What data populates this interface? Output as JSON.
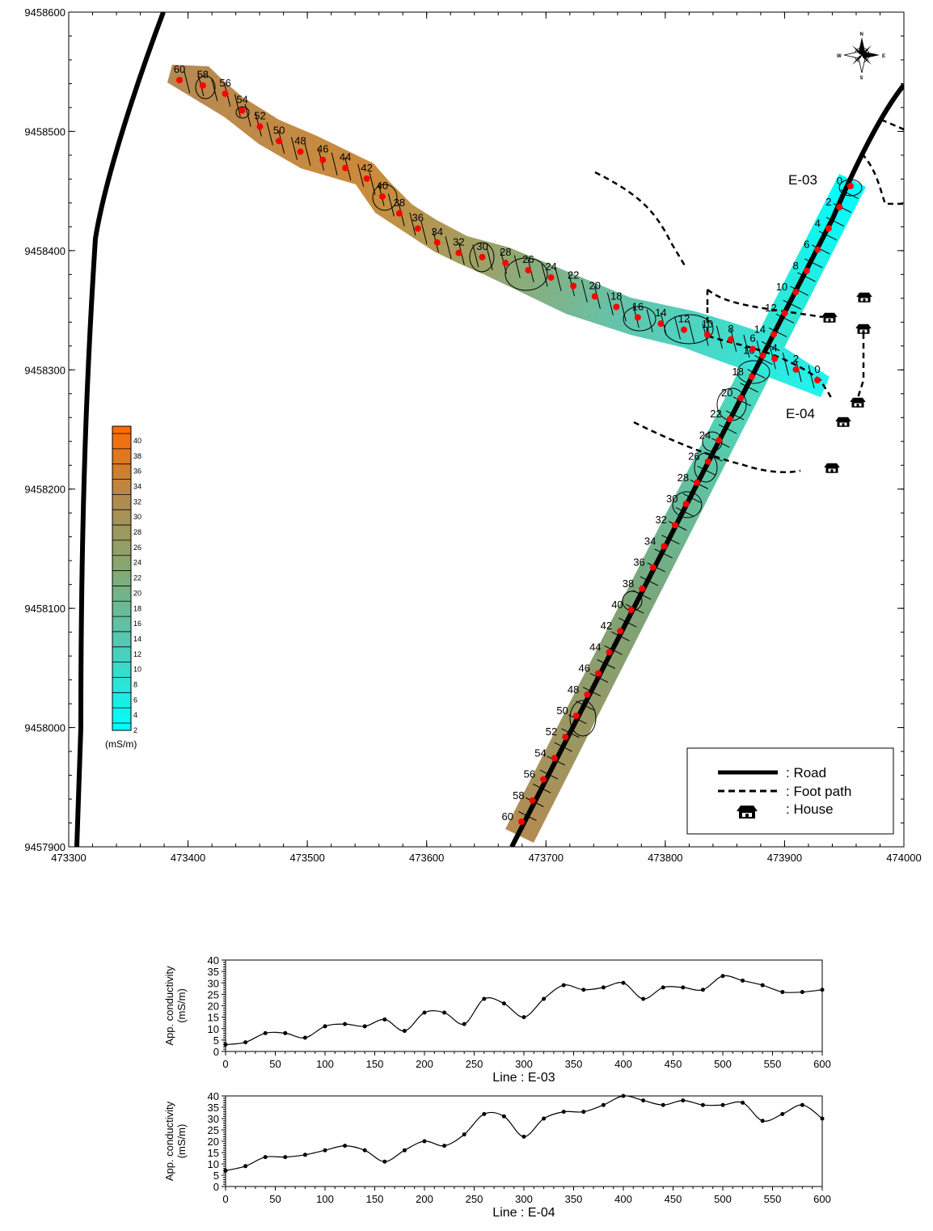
{
  "map": {
    "x_ticks": [
      "473300",
      "473400",
      "473500",
      "473600",
      "473700",
      "473800",
      "473900",
      "474000"
    ],
    "y_ticks": [
      "9457900",
      "9458000",
      "9458100",
      "9458200",
      "9458300",
      "9458400",
      "9458500",
      "9458600"
    ],
    "xlim": [
      473300,
      474000
    ],
    "ylim": [
      9457900,
      9458600
    ],
    "line_e03_label": "E-03",
    "line_e04_label": "E-04",
    "compass": {
      "n": "N",
      "s": "S",
      "e": "E",
      "w": "W"
    },
    "colorbar": {
      "ticks": [
        "40",
        "38",
        "36",
        "34",
        "32",
        "30",
        "28",
        "26",
        "24",
        "22",
        "20",
        "18",
        "16",
        "14",
        "12",
        "10",
        "8",
        "6",
        "4",
        "2"
      ],
      "unit": "(mS/m)",
      "low_color": "#00ffff",
      "high_color": "#ff6a00"
    },
    "legend": {
      "road": ": Road",
      "foot_path": ": Foot path",
      "house": ": House"
    },
    "station_labels": [
      "0",
      "2",
      "4",
      "6",
      "8",
      "10",
      "12",
      "14",
      "16",
      "18",
      "20",
      "22",
      "24",
      "26",
      "28",
      "30",
      "32",
      "34",
      "36",
      "38",
      "40",
      "42",
      "44",
      "46",
      "48",
      "50",
      "52",
      "54",
      "56",
      "58",
      "60"
    ],
    "station_color": "#ff0000"
  },
  "chart_data": [
    {
      "type": "line",
      "title": "Line : E-03",
      "ylabel_line1": "App. conductivity",
      "ylabel_line2": "(mS/m)",
      "x": [
        0,
        20,
        40,
        60,
        80,
        100,
        120,
        140,
        160,
        180,
        200,
        220,
        240,
        260,
        280,
        300,
        320,
        340,
        360,
        380,
        400,
        420,
        440,
        460,
        480,
        500,
        520,
        540,
        560,
        580,
        600
      ],
      "values": [
        3,
        4,
        8,
        8,
        6,
        11,
        12,
        11,
        14,
        9,
        17,
        17,
        12,
        23,
        21,
        15,
        23,
        29,
        27,
        28,
        30,
        23,
        28,
        28,
        27,
        33,
        31,
        29,
        26,
        26,
        27
      ],
      "xlim": [
        0,
        600
      ],
      "ylim": [
        0,
        40
      ],
      "x_ticks": [
        "0",
        "50",
        "100",
        "150",
        "200",
        "250",
        "300",
        "350",
        "400",
        "450",
        "500",
        "550",
        "600"
      ],
      "y_ticks": [
        "0",
        "5",
        "10",
        "15",
        "20",
        "25",
        "30",
        "35",
        "40"
      ]
    },
    {
      "type": "line",
      "title": "Line : E-04",
      "ylabel_line1": "App. conductivity",
      "ylabel_line2": "(mS/m)",
      "x": [
        0,
        20,
        40,
        60,
        80,
        100,
        120,
        140,
        160,
        180,
        200,
        220,
        240,
        260,
        280,
        300,
        320,
        340,
        360,
        380,
        400,
        420,
        440,
        460,
        480,
        500,
        520,
        540,
        560,
        580,
        600
      ],
      "values": [
        7,
        9,
        13,
        13,
        14,
        16,
        18,
        16,
        11,
        16,
        20,
        18,
        23,
        32,
        31,
        22,
        30,
        33,
        33,
        36,
        40,
        38,
        36,
        38,
        36,
        36,
        37,
        29,
        32,
        36,
        30
      ],
      "xlim": [
        0,
        600
      ],
      "ylim": [
        0,
        40
      ],
      "x_ticks": [
        "0",
        "50",
        "100",
        "150",
        "200",
        "250",
        "300",
        "350",
        "400",
        "450",
        "500",
        "550",
        "600"
      ],
      "y_ticks": [
        "0",
        "5",
        "10",
        "15",
        "20",
        "25",
        "30",
        "35",
        "40"
      ]
    }
  ]
}
